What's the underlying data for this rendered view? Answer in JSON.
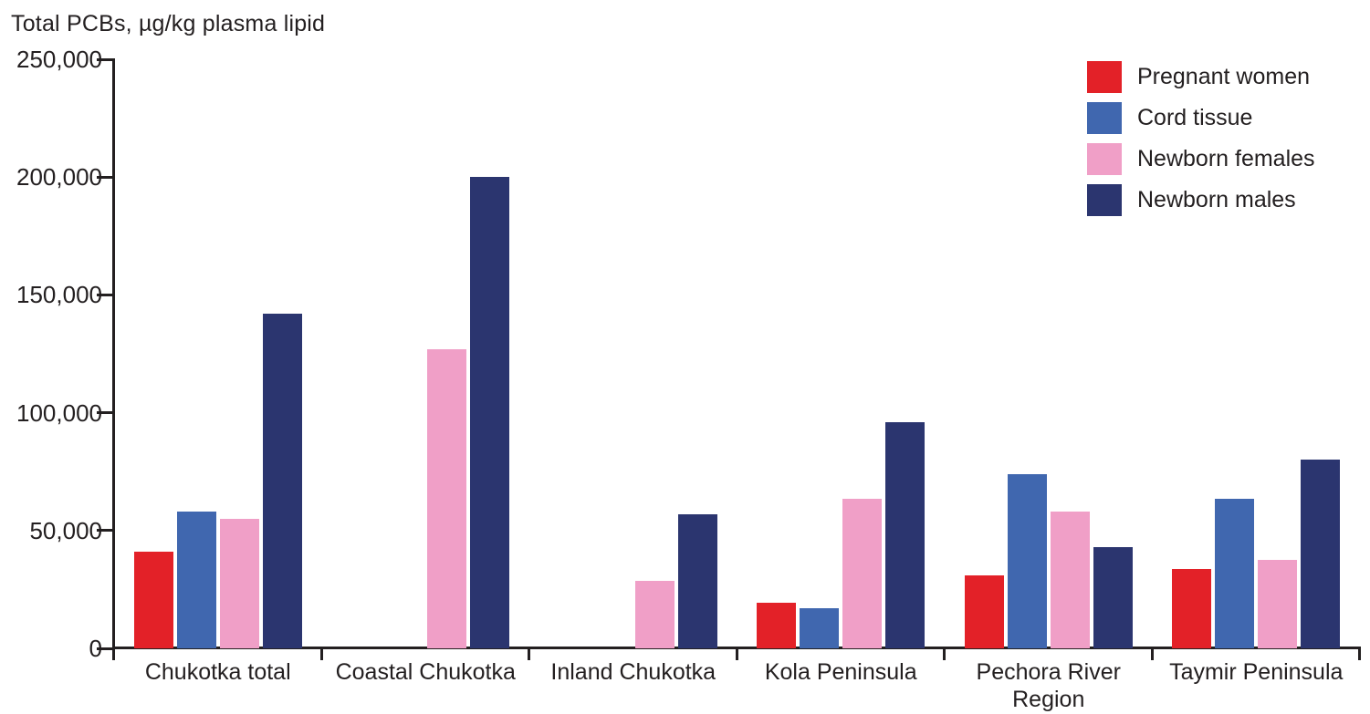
{
  "title": "Total PCBs, µg/kg plasma lipid",
  "colors": {
    "red": "#e32128",
    "blue": "#4067af",
    "pink": "#f09fc7",
    "navy": "#2b356f",
    "axis": "#231f20",
    "text": "#231f20",
    "background": "#ffffff"
  },
  "chart_data": {
    "type": "bar",
    "title": "Total PCBs, µg/kg plasma lipid",
    "xlabel": "",
    "ylabel": "Total PCBs, µg/kg plasma lipid",
    "ylim": [
      0,
      250000
    ],
    "grid": false,
    "legend_position": "top-right",
    "categories": [
      "Chukotka total",
      "Coastal Chukotka",
      "Inland Chukotka",
      "Kola Peninsula",
      "Pechora River Region",
      "Taymir Peninsula"
    ],
    "yticks": [
      {
        "value": 0,
        "label": "0"
      },
      {
        "value": 50000,
        "label": "50,000"
      },
      {
        "value": 100000,
        "label": "100,000"
      },
      {
        "value": 150000,
        "label": "150,000"
      },
      {
        "value": 200000,
        "label": "200,000"
      },
      {
        "value": 250000,
        "label": "250,000"
      }
    ],
    "series": [
      {
        "name": "Pregnant women",
        "color_key": "red",
        "values": [
          41000,
          null,
          null,
          19500,
          31000,
          33500
        ]
      },
      {
        "name": "Cord tissue",
        "color_key": "blue",
        "values": [
          58000,
          null,
          null,
          17000,
          74000,
          63500
        ]
      },
      {
        "name": "Newborn females",
        "color_key": "pink",
        "values": [
          55000,
          127000,
          28500,
          63500,
          58000,
          37500
        ]
      },
      {
        "name": "Newborn males",
        "color_key": "navy",
        "values": [
          142000,
          200000,
          57000,
          96000,
          43000,
          80000
        ]
      }
    ]
  }
}
